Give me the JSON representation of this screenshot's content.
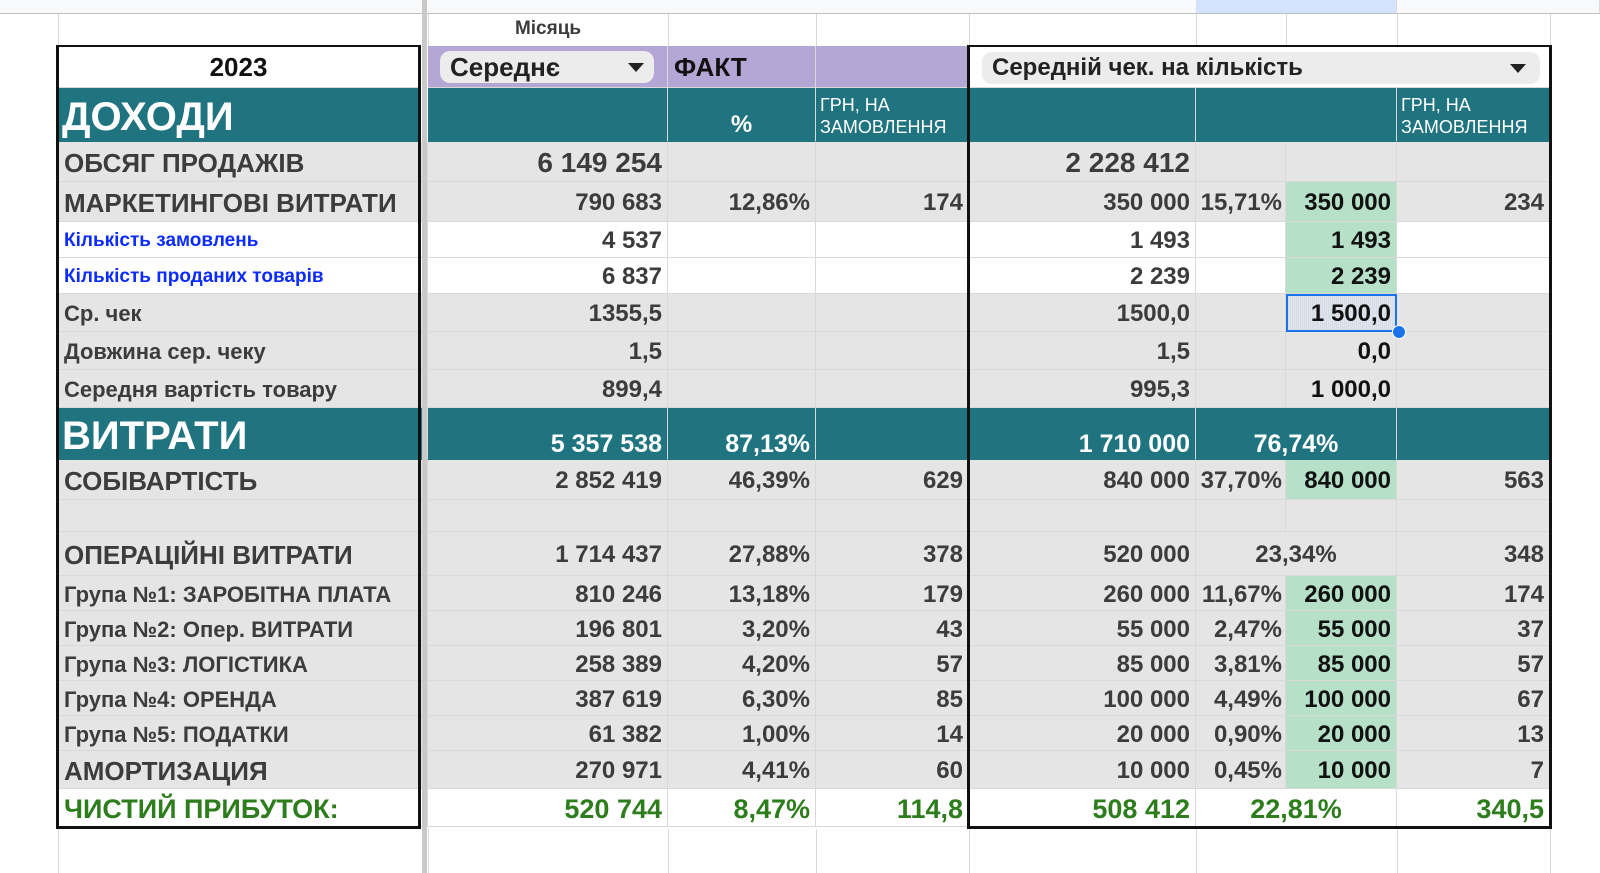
{
  "header": {
    "month_label": "Місяць",
    "year": "2023",
    "period_select": "Середнє",
    "fact_label": "ФАКТ",
    "scenario_select": "Середній чек. на кількість"
  },
  "incomes_section": {
    "title": "ДОХОДИ",
    "pct_header": "%",
    "per_order_header_1": "ГРН, НА",
    "per_order_header_2": "ЗАМОВЛЕННЯ",
    "per_order_header_right_1": "ГРН, НА",
    "per_order_header_right_2": "ЗАМОВЛЕННЯ"
  },
  "expenses_section": {
    "title": "ВИТРАТИ",
    "fact_total": "5 357 538",
    "fact_pct": "87,13%",
    "plan_total": "1 710 000",
    "plan_pct": "76,74%"
  },
  "rows": [
    {
      "label": "ОБСЯГ ПРОДАЖІВ",
      "fact": "6 149 254",
      "pct": "",
      "per": "",
      "plan": "2 228 412",
      "plan_pct": "",
      "input": "",
      "plan_per": ""
    },
    {
      "label": "МАРКЕТИНГОВІ ВИТРАТИ",
      "fact": "790 683",
      "pct": "12,86%",
      "per": "174",
      "plan": "350 000",
      "plan_pct": "15,71%",
      "input": "350 000",
      "plan_per": "234"
    },
    {
      "label": "Кількість замовлень",
      "fact": "4 537",
      "pct": "",
      "per": "",
      "plan": "1 493",
      "plan_pct": "",
      "input": "1 493",
      "plan_per": ""
    },
    {
      "label": "Кількість проданих товарів",
      "fact": "6 837",
      "pct": "",
      "per": "",
      "plan": "2 239",
      "plan_pct": "",
      "input": "2 239",
      "plan_per": ""
    },
    {
      "label": "Ср. чек",
      "fact": "1355,5",
      "pct": "",
      "per": "",
      "plan": "1500,0",
      "plan_pct": "",
      "input": "1 500,0",
      "plan_per": ""
    },
    {
      "label": "Довжина сер. чеку",
      "fact": "1,5",
      "pct": "",
      "per": "",
      "plan": "1,5",
      "plan_pct": "",
      "input": "0,0",
      "plan_per": ""
    },
    {
      "label": "Середня вартість товару",
      "fact": "899,4",
      "pct": "",
      "per": "",
      "plan": "995,3",
      "plan_pct": "",
      "input": "1 000,0",
      "plan_per": ""
    },
    {
      "label": "СОБІВАРТІСТЬ",
      "fact": "2 852 419",
      "pct": "46,39%",
      "per": "629",
      "plan": "840 000",
      "plan_pct": "37,70%",
      "input": "840 000",
      "plan_per": "563"
    },
    {
      "label": "",
      "fact": "",
      "pct": "",
      "per": "",
      "plan": "",
      "plan_pct": "",
      "input": "",
      "plan_per": ""
    },
    {
      "label": "ОПЕРАЦІЙНІ ВИТРАТИ",
      "fact": "1 714 437",
      "pct": "27,88%",
      "per": "378",
      "plan": "520 000",
      "plan_pct": "23,34%",
      "input": "",
      "plan_per": "348"
    },
    {
      "label": "Група №1: ЗАРОБІТНА ПЛАТА",
      "fact": "810 246",
      "pct": "13,18%",
      "per": "179",
      "plan": "260 000",
      "plan_pct": "11,67%",
      "input": "260 000",
      "plan_per": "174"
    },
    {
      "label": "Група №2: Опер. ВИТРАТИ",
      "fact": "196 801",
      "pct": "3,20%",
      "per": "43",
      "plan": "55 000",
      "plan_pct": "2,47%",
      "input": "55 000",
      "plan_per": "37"
    },
    {
      "label": "Група №3: ЛОГІСТИКА",
      "fact": "258 389",
      "pct": "4,20%",
      "per": "57",
      "plan": "85 000",
      "plan_pct": "3,81%",
      "input": "85 000",
      "plan_per": "57"
    },
    {
      "label": "Група №4: ОРЕНДА",
      "fact": "387 619",
      "pct": "6,30%",
      "per": "85",
      "plan": "100 000",
      "plan_pct": "4,49%",
      "input": "100 000",
      "plan_per": "67"
    },
    {
      "label": "Група №5: ПОДАТКИ",
      "fact": "61 382",
      "pct": "1,00%",
      "per": "14",
      "plan": "20 000",
      "plan_pct": "0,90%",
      "input": "20 000",
      "plan_per": "13"
    },
    {
      "label": "АМОРТИЗАЦИЯ",
      "fact": "270 971",
      "pct": "4,41%",
      "per": "60",
      "plan": "10 000",
      "plan_pct": "0,45%",
      "input": "10 000",
      "plan_per": "7"
    },
    {
      "label": "ЧИСТИЙ ПРИБУТОК:",
      "fact": "520 744",
      "pct": "8,47%",
      "per": "114,8",
      "plan": "508 412",
      "plan_pct": "22,81%",
      "input": "",
      "plan_per": "340,5"
    }
  ],
  "colors": {
    "teal_header": "#1f7480",
    "input_green": "#b6e0c8",
    "fact_purple": "#b4a7d6",
    "profit_green": "#2d7d1d",
    "link_blue": "#0b2bff",
    "selection_blue": "#1a73e8"
  },
  "icons": {
    "dropdown": "chevron-down-icon",
    "fill_handle": "selection-handle-icon"
  }
}
